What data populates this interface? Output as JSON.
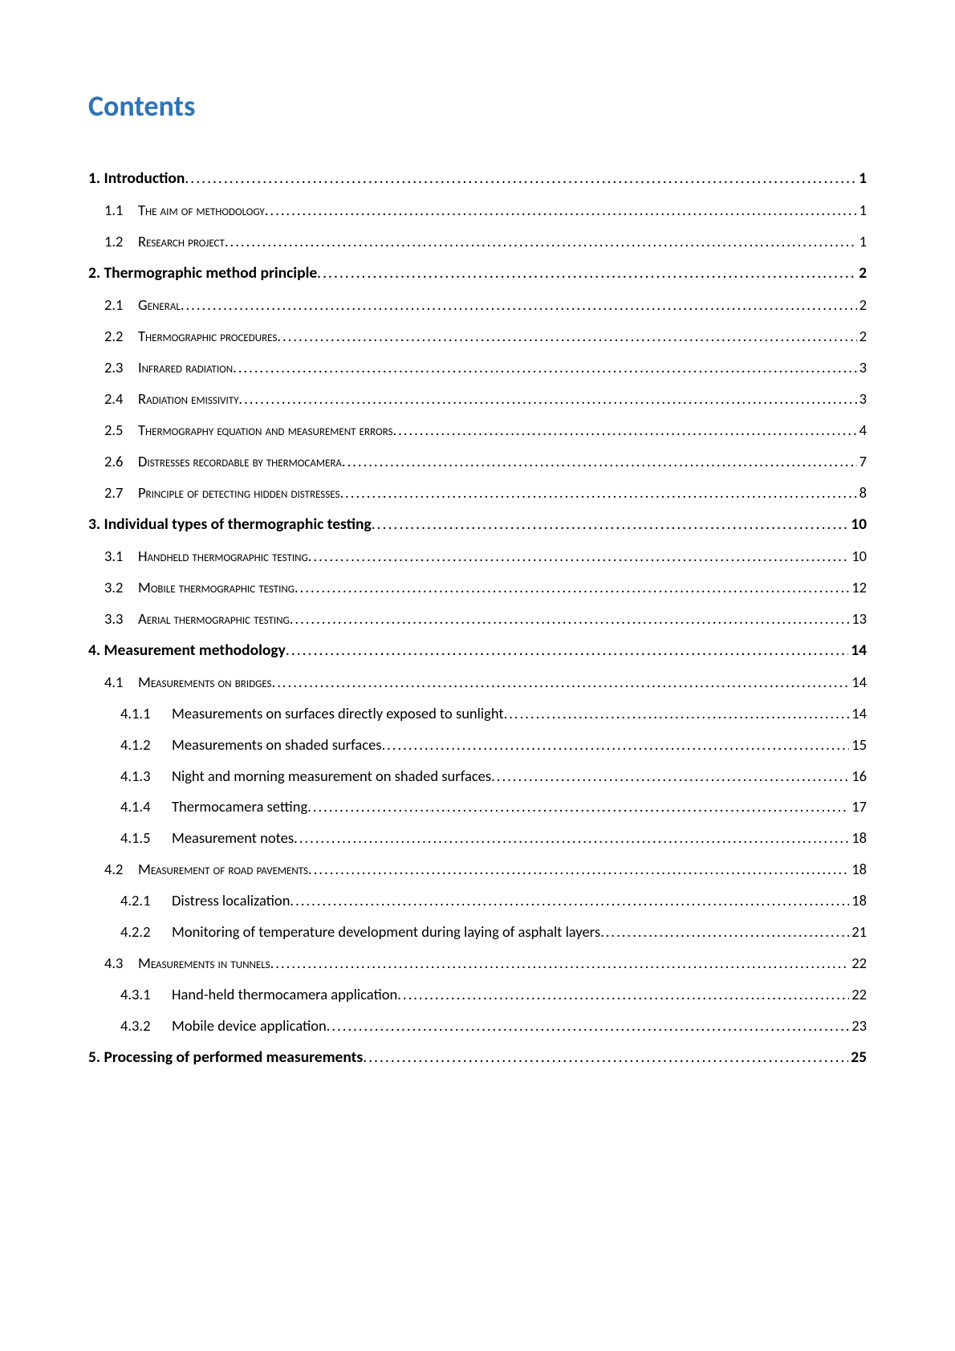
{
  "title": "Contents",
  "colors": {
    "title_color": "#2e74b5",
    "text_color": "#000000",
    "background": "#ffffff"
  },
  "typography": {
    "title_fontsize": 36,
    "l1_fontsize": 19.5,
    "l2_fontsize": 18.5,
    "l3_fontsize": 18.5,
    "font_family": "Calibri"
  },
  "toc": [
    {
      "level": 1,
      "num": "1.",
      "text": " Introduction",
      "page": "1",
      "smallcaps": false
    },
    {
      "level": 2,
      "num": "1.1",
      "text": "The aim of methodology",
      "page": "1",
      "smallcaps": true
    },
    {
      "level": 2,
      "num": "1.2",
      "text": "Research project",
      "page": "1",
      "smallcaps": true
    },
    {
      "level": 1,
      "num": "2.",
      "text": " Thermographic method principle",
      "page": "2",
      "smallcaps": false
    },
    {
      "level": 2,
      "num": "2.1",
      "text": "General",
      "page": "2",
      "smallcaps": true
    },
    {
      "level": 2,
      "num": "2.2",
      "text": "Thermographic procedures",
      "page": "2",
      "smallcaps": true
    },
    {
      "level": 2,
      "num": "2.3",
      "text": "Infrared radiation",
      "page": "3",
      "smallcaps": true
    },
    {
      "level": 2,
      "num": "2.4",
      "text": "Radiation emissivity",
      "page": "3",
      "smallcaps": true
    },
    {
      "level": 2,
      "num": "2.5",
      "text": "Thermography equation and measurement errors",
      "page": "4",
      "smallcaps": true
    },
    {
      "level": 2,
      "num": "2.6",
      "text": "Distresses recordable by thermocamera",
      "page": "7",
      "smallcaps": true
    },
    {
      "level": 2,
      "num": "2.7",
      "text": "Principle of detecting hidden distresses",
      "page": "8",
      "smallcaps": true
    },
    {
      "level": 1,
      "num": "3.",
      "text": " Individual types of thermographic testing",
      "page": "10",
      "smallcaps": false
    },
    {
      "level": 2,
      "num": "3.1",
      "text": "Handheld thermographic testing",
      "page": "10",
      "smallcaps": true
    },
    {
      "level": 2,
      "num": "3.2",
      "text": "Mobile thermographic testing",
      "page": "12",
      "smallcaps": true
    },
    {
      "level": 2,
      "num": "3.3",
      "text": "Aerial thermographic testing",
      "page": "13",
      "smallcaps": true
    },
    {
      "level": 1,
      "num": "4.",
      "text": " Measurement methodology",
      "page": "14",
      "smallcaps": false
    },
    {
      "level": 2,
      "num": "4.1",
      "text": "Measurements on bridges",
      "page": "14",
      "smallcaps": true
    },
    {
      "level": 3,
      "num": "4.1.1",
      "text": "Measurements on surfaces directly exposed to sunlight",
      "page": "14",
      "smallcaps": false
    },
    {
      "level": 3,
      "num": "4.1.2",
      "text": "Measurements on shaded surfaces",
      "page": "15",
      "smallcaps": false
    },
    {
      "level": 3,
      "num": "4.1.3",
      "text": "Night and morning measurement on shaded surfaces",
      "page": "16",
      "smallcaps": false
    },
    {
      "level": 3,
      "num": "4.1.4",
      "text": "Thermocamera setting",
      "page": "17",
      "smallcaps": false
    },
    {
      "level": 3,
      "num": "4.1.5",
      "text": "Measurement notes",
      "page": "18",
      "smallcaps": false
    },
    {
      "level": 2,
      "num": "4.2",
      "text": "Measurement of road pavements",
      "page": "18",
      "smallcaps": true
    },
    {
      "level": 3,
      "num": "4.2.1",
      "text": "Distress localization",
      "page": "18",
      "smallcaps": false
    },
    {
      "level": 3,
      "num": "4.2.2",
      "text": "Monitoring of temperature development during laying of asphalt layers",
      "page": "21",
      "smallcaps": false
    },
    {
      "level": 2,
      "num": "4.3",
      "text": "Measurements in tunnels",
      "page": "22",
      "smallcaps": true
    },
    {
      "level": 3,
      "num": "4.3.1",
      "text": "Hand-held thermocamera application",
      "page": "22",
      "smallcaps": false
    },
    {
      "level": 3,
      "num": "4.3.2",
      "text": "Mobile device application",
      "page": "23",
      "smallcaps": false
    },
    {
      "level": 1,
      "num": "5.",
      "text": " Processing of performed measurements",
      "page": "25",
      "smallcaps": false
    }
  ]
}
